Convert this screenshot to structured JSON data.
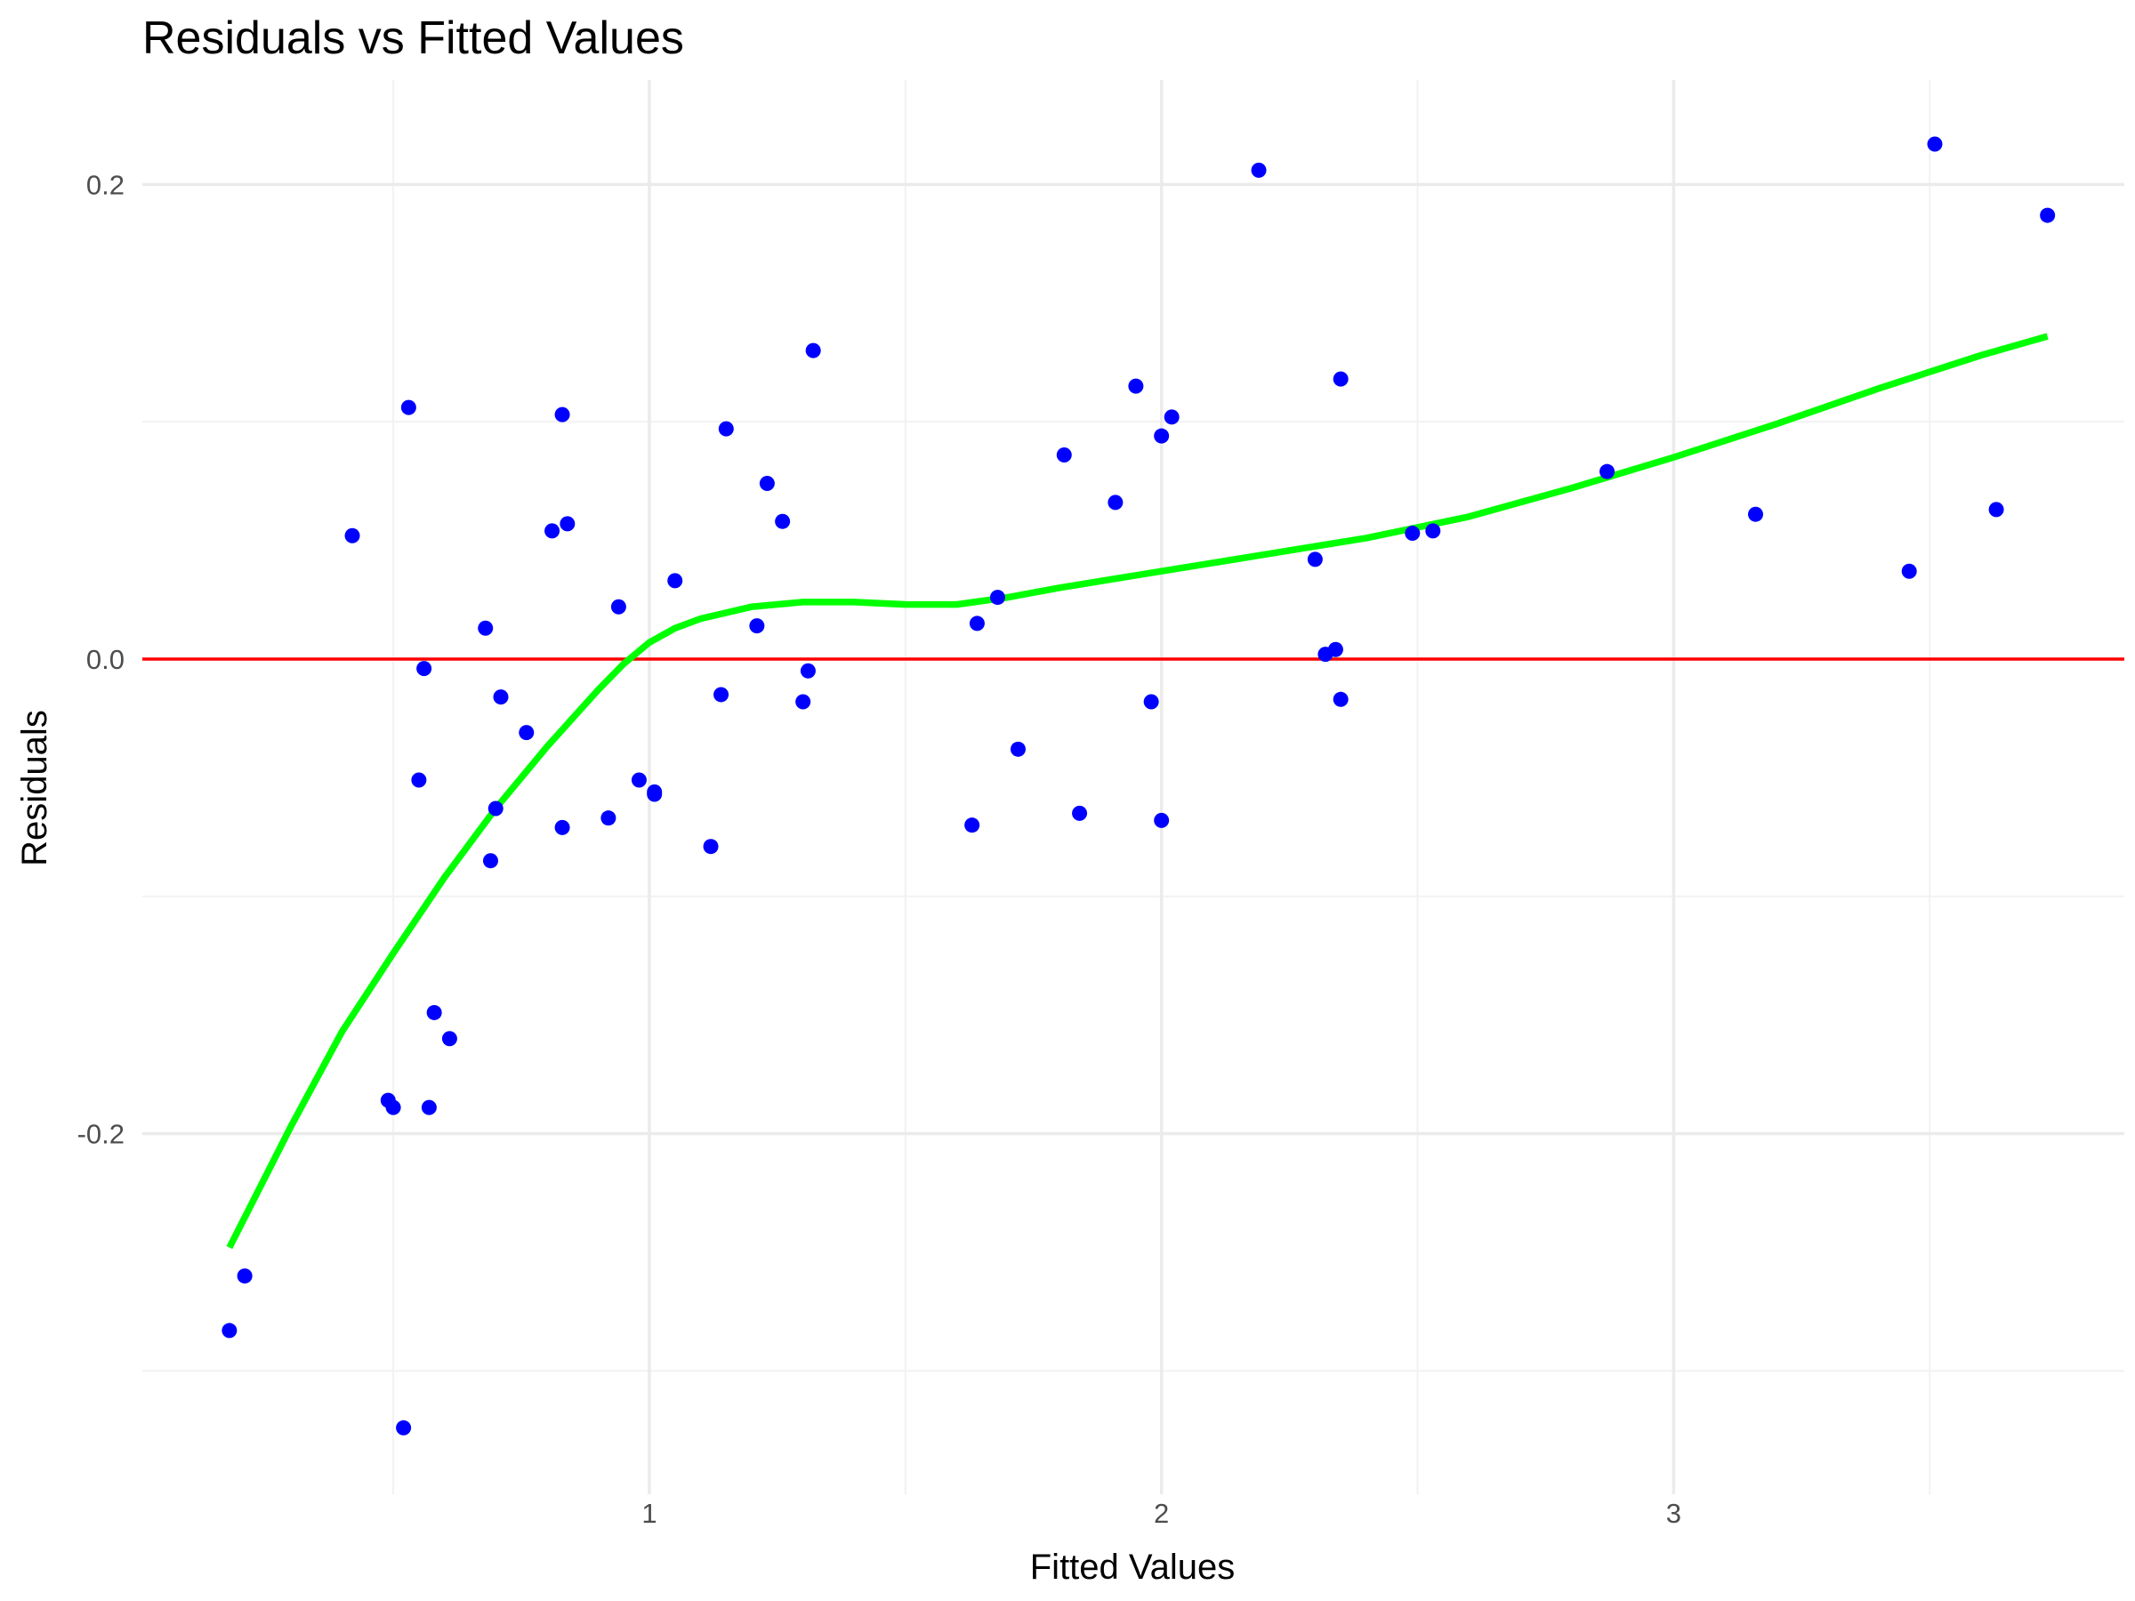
{
  "chart_data": {
    "type": "scatter",
    "title": "Residuals vs Fitted Values",
    "xlabel": "Fitted Values",
    "ylabel": "Residuals",
    "xlim": [
      0.01,
      3.88
    ],
    "ylim": [
      -0.352,
      0.244
    ],
    "x_ticks": [
      {
        "value": 1,
        "label": "1"
      },
      {
        "value": 2,
        "label": "2"
      },
      {
        "value": 3,
        "label": "3"
      }
    ],
    "x_minor_ticks": [
      0.5,
      1.5,
      2.5,
      3.5
    ],
    "y_ticks": [
      {
        "value": -0.2,
        "label": "-0.2"
      },
      {
        "value": 0.0,
        "label": "0.0"
      },
      {
        "value": 0.2,
        "label": "0.2"
      }
    ],
    "y_minor_ticks": [
      -0.3,
      -0.1,
      0.1
    ],
    "grid": true,
    "colors": {
      "points": "#0000ff",
      "reference_line": "#ff0000",
      "smooth_line": "#00ff00"
    },
    "reference_line": {
      "y": 0.0
    },
    "series": [
      {
        "type": "scatter",
        "points": [
          {
            "x": 0.18,
            "y": -0.283
          },
          {
            "x": 0.21,
            "y": -0.26
          },
          {
            "x": 0.42,
            "y": 0.052
          },
          {
            "x": 0.49,
            "y": -0.186
          },
          {
            "x": 0.5,
            "y": -0.189
          },
          {
            "x": 0.52,
            "y": -0.324
          },
          {
            "x": 0.53,
            "y": 0.106
          },
          {
            "x": 0.55,
            "y": -0.051
          },
          {
            "x": 0.56,
            "y": -0.004
          },
          {
            "x": 0.57,
            "y": -0.189
          },
          {
            "x": 0.58,
            "y": -0.149
          },
          {
            "x": 0.61,
            "y": -0.16
          },
          {
            "x": 0.68,
            "y": 0.013
          },
          {
            "x": 0.69,
            "y": -0.085
          },
          {
            "x": 0.7,
            "y": -0.063
          },
          {
            "x": 0.71,
            "y": -0.016
          },
          {
            "x": 0.76,
            "y": -0.031
          },
          {
            "x": 0.81,
            "y": 0.054
          },
          {
            "x": 0.83,
            "y": 0.103
          },
          {
            "x": 0.83,
            "y": -0.071
          },
          {
            "x": 0.84,
            "y": 0.057
          },
          {
            "x": 0.92,
            "y": -0.067
          },
          {
            "x": 0.94,
            "y": 0.022
          },
          {
            "x": 0.98,
            "y": -0.051
          },
          {
            "x": 1.01,
            "y": -0.056
          },
          {
            "x": 1.01,
            "y": -0.057
          },
          {
            "x": 1.05,
            "y": 0.033
          },
          {
            "x": 1.12,
            "y": -0.079
          },
          {
            "x": 1.14,
            "y": -0.015
          },
          {
            "x": 1.15,
            "y": 0.097
          },
          {
            "x": 1.21,
            "y": 0.014
          },
          {
            "x": 1.23,
            "y": 0.074
          },
          {
            "x": 1.26,
            "y": 0.058
          },
          {
            "x": 1.3,
            "y": -0.018
          },
          {
            "x": 1.31,
            "y": -0.005
          },
          {
            "x": 1.32,
            "y": 0.13
          },
          {
            "x": 1.63,
            "y": -0.07
          },
          {
            "x": 1.64,
            "y": 0.015
          },
          {
            "x": 1.68,
            "y": 0.026
          },
          {
            "x": 1.72,
            "y": -0.038
          },
          {
            "x": 1.81,
            "y": 0.086
          },
          {
            "x": 1.84,
            "y": -0.065
          },
          {
            "x": 1.91,
            "y": 0.066
          },
          {
            "x": 1.95,
            "y": 0.115
          },
          {
            "x": 1.98,
            "y": -0.018
          },
          {
            "x": 2.0,
            "y": -0.068
          },
          {
            "x": 2.0,
            "y": 0.094
          },
          {
            "x": 2.02,
            "y": 0.102
          },
          {
            "x": 2.19,
            "y": 0.206
          },
          {
            "x": 2.3,
            "y": 0.042
          },
          {
            "x": 2.32,
            "y": 0.002
          },
          {
            "x": 2.34,
            "y": 0.004
          },
          {
            "x": 2.35,
            "y": -0.017
          },
          {
            "x": 2.35,
            "y": 0.118
          },
          {
            "x": 2.49,
            "y": 0.053
          },
          {
            "x": 2.53,
            "y": 0.054
          },
          {
            "x": 2.87,
            "y": 0.079
          },
          {
            "x": 3.16,
            "y": 0.061
          },
          {
            "x": 3.46,
            "y": 0.037
          },
          {
            "x": 3.51,
            "y": 0.217
          },
          {
            "x": 3.63,
            "y": 0.063
          },
          {
            "x": 3.73,
            "y": 0.187
          }
        ]
      },
      {
        "type": "line",
        "role": "smooth",
        "x": [
          0.18,
          0.3,
          0.4,
          0.5,
          0.6,
          0.7,
          0.8,
          0.9,
          0.95,
          1.0,
          1.05,
          1.1,
          1.2,
          1.3,
          1.4,
          1.5,
          1.6,
          1.7,
          1.8,
          2.0,
          2.2,
          2.4,
          2.6,
          2.8,
          3.0,
          3.2,
          3.4,
          3.6,
          3.73
        ],
        "y": [
          -0.248,
          -0.197,
          -0.157,
          -0.124,
          -0.092,
          -0.063,
          -0.037,
          -0.013,
          -0.002,
          0.007,
          0.013,
          0.017,
          0.022,
          0.024,
          0.024,
          0.023,
          0.023,
          0.026,
          0.03,
          0.037,
          0.044,
          0.051,
          0.06,
          0.072,
          0.085,
          0.099,
          0.114,
          0.128,
          0.136
        ]
      }
    ]
  }
}
